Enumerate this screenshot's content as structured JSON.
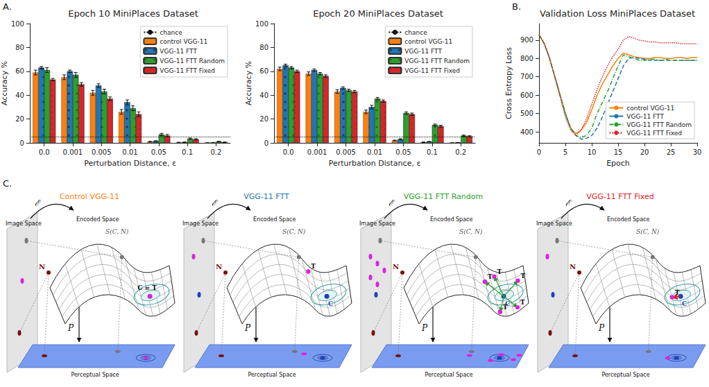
{
  "panels": {
    "A": "A.",
    "B": "B.",
    "C": "C."
  },
  "chart_data": [
    {
      "type": "bar",
      "title": "Epoch 10 MiniPlaces Dataset",
      "xlabel": "Perturbation Distance, ε",
      "ylabel": "Accuracy %",
      "categories": [
        "0.0",
        "0.001",
        "0.005",
        "0.01",
        "0.05",
        "0.1",
        "0.2"
      ],
      "ylim": [
        0,
        100
      ],
      "yticks": [
        0,
        20,
        40,
        60,
        80,
        100
      ],
      "grid": false,
      "legend": "upper right",
      "chance": {
        "label": "chance",
        "value": 5
      },
      "series": [
        {
          "name": "control VGG-11",
          "color": "#ff7f0e",
          "values": [
            59,
            55,
            42,
            26,
            1,
            0.3,
            0
          ],
          "errors": [
            2,
            2,
            2,
            2,
            0.3,
            0.2,
            0
          ]
        },
        {
          "name": "VGG-11 FTT",
          "color": "#1f77b4",
          "marker": "circle",
          "values": [
            63,
            60,
            48,
            34,
            1.5,
            0.5,
            0.1
          ],
          "errors": [
            1,
            1,
            1.5,
            2,
            0.3,
            0.2,
            0.1
          ]
        },
        {
          "name": "VGG-11 FTT Random",
          "color": "#2ca02c",
          "marker": "cross",
          "values": [
            61,
            57,
            43,
            29,
            7,
            3.5,
            1
          ],
          "errors": [
            2,
            2,
            2,
            2,
            1,
            0.5,
            0.3
          ]
        },
        {
          "name": "VGG-11 FTT Fixed",
          "color": "#d62728",
          "marker": "dot",
          "values": [
            53,
            49,
            37,
            24,
            6,
            3,
            0.5
          ],
          "errors": [
            1,
            1.5,
            1.5,
            2,
            1,
            0.5,
            0.2
          ]
        }
      ]
    },
    {
      "type": "bar",
      "title": "Epoch 20 MiniPlaces Dataset",
      "xlabel": "Perturbation Distance, ε",
      "ylabel": "Accuracy %",
      "categories": [
        "0.0",
        "0.001",
        "0.005",
        "0.01",
        "0.05",
        "0.1",
        "0.2"
      ],
      "ylim": [
        0,
        100
      ],
      "yticks": [
        0,
        20,
        40,
        60,
        80,
        100
      ],
      "grid": false,
      "legend": "upper right",
      "chance": {
        "label": "chance",
        "value": 5
      },
      "series": [
        {
          "name": "control VGG-11",
          "color": "#ff7f0e",
          "values": [
            62,
            58,
            43,
            26,
            2,
            0.5,
            0
          ],
          "errors": [
            1.5,
            1.5,
            1.5,
            1.5,
            0.3,
            0.2,
            0
          ]
        },
        {
          "name": "VGG-11 FTT",
          "color": "#1f77b4",
          "marker": "circle",
          "values": [
            65,
            61,
            46,
            30,
            3,
            1,
            0.2
          ],
          "errors": [
            1,
            1,
            1,
            1.5,
            0.5,
            0.2,
            0.1
          ]
        },
        {
          "name": "VGG-11 FTT Random",
          "color": "#2ca02c",
          "marker": "cross",
          "values": [
            63,
            58,
            44,
            37,
            25,
            15,
            6
          ],
          "errors": [
            1,
            1,
            1,
            1,
            1,
            0.8,
            0.5
          ]
        },
        {
          "name": "VGG-11 FTT Fixed",
          "color": "#d62728",
          "marker": "dot",
          "values": [
            60,
            56,
            43,
            35,
            24,
            14,
            5.5
          ],
          "errors": [
            1,
            1,
            1,
            1,
            1,
            0.8,
            0.5
          ]
        }
      ]
    },
    {
      "type": "line",
      "title": "Validation Loss MiniPlaces Dataset",
      "xlabel": "Epoch",
      "ylabel": "Cross Entropy Loss",
      "x": [
        0,
        1,
        2,
        3,
        4,
        5,
        6,
        7,
        8,
        9,
        10,
        11,
        12,
        13,
        14,
        15,
        16,
        17,
        18,
        19,
        20,
        21,
        22,
        23,
        24,
        25,
        26,
        27,
        28,
        29,
        30
      ],
      "xlim": [
        0,
        30
      ],
      "xticks": [
        0,
        5,
        10,
        15,
        20,
        25,
        30
      ],
      "ylim": [
        340,
        990
      ],
      "yticks": [
        400,
        500,
        600,
        700,
        800,
        900
      ],
      "grid": false,
      "legend": "lower right",
      "series": [
        {
          "name": "control VGG-11",
          "color": "#ff7f0e",
          "line_style": "solid",
          "std": 20,
          "values": [
            930,
            880,
            800,
            700,
            600,
            500,
            420,
            390,
            410,
            450,
            520,
            600,
            660,
            710,
            760,
            800,
            830,
            820,
            810,
            805,
            800,
            800,
            805,
            805,
            800,
            800,
            805,
            805,
            800,
            805,
            805
          ]
        },
        {
          "name": "VGG-11 FTT",
          "color": "#1f77b4",
          "line_style": "dashed",
          "std": 20,
          "values": [
            930,
            880,
            800,
            700,
            600,
            500,
            420,
            380,
            360,
            365,
            380,
            420,
            480,
            550,
            620,
            690,
            760,
            800,
            805,
            800,
            795,
            790,
            790,
            790,
            790,
            790,
            790,
            790,
            790,
            790,
            790
          ]
        },
        {
          "name": "VGG-11 FTT Random",
          "color": "#2ca02c",
          "line_style": "dashdot",
          "std": 25,
          "values": [
            930,
            880,
            800,
            700,
            600,
            500,
            420,
            380,
            370,
            380,
            420,
            500,
            560,
            620,
            690,
            760,
            820,
            810,
            800,
            790,
            790,
            795,
            795,
            790,
            795,
            790,
            790,
            790,
            790,
            790,
            790
          ]
        },
        {
          "name": "VGG-11 FTT Fixed",
          "color": "#d62728",
          "line_style": "dotted",
          "std": 30,
          "values": [
            930,
            880,
            800,
            700,
            590,
            480,
            410,
            380,
            410,
            470,
            550,
            630,
            700,
            760,
            810,
            850,
            900,
            920,
            910,
            900,
            895,
            890,
            890,
            885,
            885,
            885,
            885,
            880,
            880,
            880,
            880
          ]
        }
      ]
    }
  ],
  "diagram": {
    "labels": {
      "image_space": "Image Space",
      "encoded_space": "Encoded Space",
      "encoder": "ℰ",
      "surface": "S(C, N)",
      "noise": "N",
      "projection": "P",
      "perceptual_space": "Perceptual Space"
    },
    "panels": [
      {
        "title": "Control VGG-11",
        "color": "#ff7f0e",
        "points": [
          {
            "label": "C = T"
          }
        ]
      },
      {
        "title": "VGG-11 FTT",
        "color": "#1f77b4",
        "points": [
          {
            "label": "C"
          },
          {
            "label": "T"
          }
        ]
      },
      {
        "title": "VGG-11 FTT Random",
        "color": "#2ca02c",
        "points": [
          {
            "label": "C"
          },
          {
            "label": "T"
          },
          {
            "label": "T"
          },
          {
            "label": "T"
          },
          {
            "label": "T"
          },
          {
            "label": "T"
          }
        ]
      },
      {
        "title": "VGG-11 FTT Fixed",
        "color": "#d62728",
        "points": [
          {
            "label": "C"
          },
          {
            "label": "T"
          }
        ]
      }
    ]
  }
}
